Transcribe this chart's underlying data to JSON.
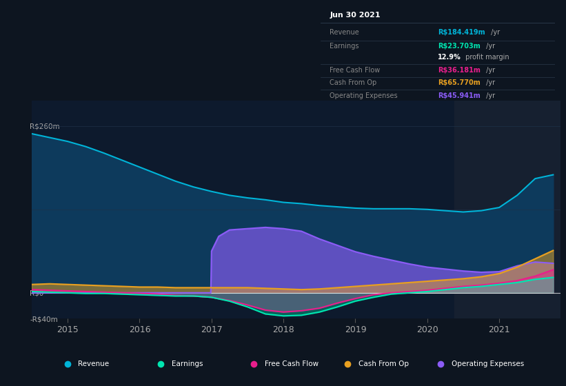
{
  "bg_color": "#0d1520",
  "chart_bg": "#0d1a2d",
  "header_bg": "#0d1520",
  "highlight_bg": "#162030",
  "ylim": [
    -40,
    300
  ],
  "ytick_positions": [
    -40,
    0,
    130,
    260
  ],
  "ytick_labels": [
    "-R$40m",
    "R$0",
    "",
    "R$260m"
  ],
  "xlim_start": 2014.5,
  "xlim_end": 2021.85,
  "xticks": [
    2015,
    2016,
    2017,
    2018,
    2019,
    2020,
    2021
  ],
  "highlight_start": 2020.38,
  "highlight_end": 2021.85,
  "colors": {
    "revenue": "#00b4d8",
    "revenue_fill": "#0d3a5c",
    "earnings": "#00e5b0",
    "free_cash_flow": "#e91e8c",
    "cash_from_op": "#e8a020",
    "operating_expenses": "#8b5cf6"
  },
  "revenue_x": [
    2014.5,
    2014.75,
    2015.0,
    2015.25,
    2015.5,
    2015.75,
    2016.0,
    2016.25,
    2016.5,
    2016.75,
    2017.0,
    2017.25,
    2017.5,
    2017.75,
    2018.0,
    2018.25,
    2018.5,
    2018.75,
    2019.0,
    2019.25,
    2019.5,
    2019.75,
    2020.0,
    2020.25,
    2020.5,
    2020.75,
    2021.0,
    2021.25,
    2021.5,
    2021.75
  ],
  "revenue_y": [
    248,
    242,
    236,
    228,
    218,
    207,
    196,
    185,
    174,
    165,
    158,
    152,
    148,
    145,
    141,
    139,
    136,
    134,
    132,
    131,
    131,
    131,
    130,
    128,
    126,
    128,
    133,
    152,
    178,
    184
  ],
  "earnings_x": [
    2014.5,
    2014.75,
    2015.0,
    2015.25,
    2015.5,
    2015.75,
    2016.0,
    2016.25,
    2016.5,
    2016.75,
    2017.0,
    2017.25,
    2017.5,
    2017.75,
    2018.0,
    2018.25,
    2018.5,
    2018.75,
    2019.0,
    2019.25,
    2019.5,
    2019.75,
    2020.0,
    2020.25,
    2020.5,
    2020.75,
    2021.0,
    2021.25,
    2021.5,
    2021.75
  ],
  "earnings_y": [
    2,
    1,
    0,
    -1,
    -1,
    -2,
    -3,
    -4,
    -5,
    -5,
    -7,
    -13,
    -22,
    -33,
    -36,
    -35,
    -30,
    -22,
    -13,
    -7,
    -2,
    0,
    2,
    5,
    8,
    10,
    13,
    16,
    21,
    24
  ],
  "fcf_x": [
    2014.5,
    2014.75,
    2015.0,
    2015.25,
    2015.5,
    2015.75,
    2016.0,
    2016.25,
    2016.5,
    2016.75,
    2017.0,
    2017.25,
    2017.5,
    2017.75,
    2018.0,
    2018.25,
    2018.5,
    2018.75,
    2019.0,
    2019.25,
    2019.5,
    2019.75,
    2020.0,
    2020.25,
    2020.5,
    2020.75,
    2021.0,
    2021.25,
    2021.5,
    2021.75
  ],
  "fcf_y": [
    5,
    4,
    3,
    2,
    1,
    0,
    -1,
    -2,
    -4,
    -5,
    -7,
    -12,
    -19,
    -27,
    -30,
    -28,
    -24,
    -16,
    -9,
    -3,
    0,
    2,
    4,
    7,
    10,
    12,
    15,
    19,
    26,
    36
  ],
  "cashop_x": [
    2014.5,
    2014.75,
    2015.0,
    2015.25,
    2015.5,
    2015.75,
    2016.0,
    2016.25,
    2016.5,
    2016.75,
    2017.0,
    2017.25,
    2017.5,
    2017.75,
    2018.0,
    2018.25,
    2018.5,
    2018.75,
    2019.0,
    2019.25,
    2019.5,
    2019.75,
    2020.0,
    2020.25,
    2020.5,
    2020.75,
    2021.0,
    2021.25,
    2021.5,
    2021.75
  ],
  "cashop_y": [
    13,
    14,
    13,
    12,
    11,
    10,
    9,
    9,
    8,
    8,
    8,
    8,
    8,
    7,
    6,
    5,
    6,
    8,
    10,
    12,
    14,
    16,
    18,
    20,
    22,
    25,
    30,
    40,
    53,
    66
  ],
  "opex_x": [
    2014.5,
    2015.0,
    2015.5,
    2016.0,
    2016.5,
    2016.75,
    2016.99,
    2017.0,
    2017.1,
    2017.25,
    2017.5,
    2017.75,
    2018.0,
    2018.25,
    2018.5,
    2018.75,
    2019.0,
    2019.25,
    2019.5,
    2019.75,
    2020.0,
    2020.25,
    2020.5,
    2020.75,
    2021.0,
    2021.25,
    2021.5,
    2021.75
  ],
  "opex_y": [
    0,
    0,
    0,
    0,
    0,
    0,
    0,
    65,
    88,
    98,
    100,
    102,
    100,
    96,
    84,
    74,
    64,
    57,
    51,
    45,
    40,
    37,
    34,
    32,
    33,
    42,
    48,
    46
  ],
  "info_date": "Jun 30 2021",
  "info_rows": [
    {
      "label": "Revenue",
      "value": "R$184.419m",
      "suffix": " /yr",
      "val_color": "#00b4d8"
    },
    {
      "label": "Earnings",
      "value": "R$23.703m",
      "suffix": " /yr",
      "val_color": "#00e5b0"
    },
    {
      "label": "",
      "value": "12.9%",
      "suffix": " profit margin",
      "val_color": "#ffffff"
    },
    {
      "label": "Free Cash Flow",
      "value": "R$36.181m",
      "suffix": " /yr",
      "val_color": "#e91e8c"
    },
    {
      "label": "Cash From Op",
      "value": "R$65.770m",
      "suffix": " /yr",
      "val_color": "#e8a020"
    },
    {
      "label": "Operating Expenses",
      "value": "R$45.941m",
      "suffix": " /yr",
      "val_color": "#8b5cf6"
    }
  ],
  "legend": [
    {
      "label": "Revenue",
      "color": "#00b4d8"
    },
    {
      "label": "Earnings",
      "color": "#00e5b0"
    },
    {
      "label": "Free Cash Flow",
      "color": "#e91e8c"
    },
    {
      "label": "Cash From Op",
      "color": "#e8a020"
    },
    {
      "label": "Operating Expenses",
      "color": "#8b5cf6"
    }
  ]
}
